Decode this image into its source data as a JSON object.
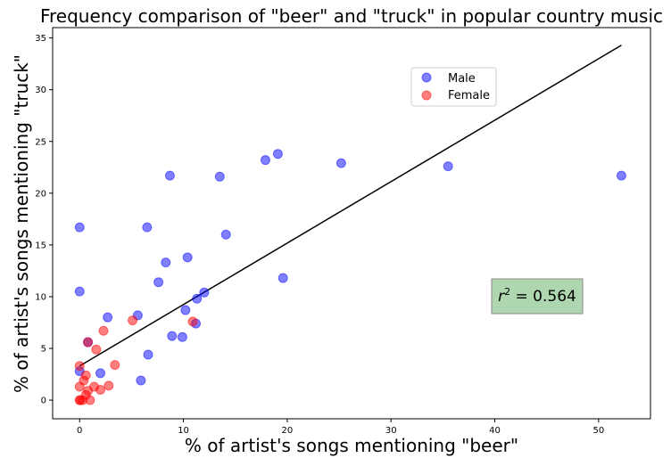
{
  "chart_data": {
    "type": "scatter",
    "title": "Frequency comparison of \"beer\" and \"truck\" in popular country music",
    "xlabel": "% of artist's songs mentioning \"beer\"",
    "ylabel": "% of artist's songs mentioning \"truck\"",
    "xlim": [
      -2.6,
      55.0
    ],
    "ylim": [
      -1.8,
      36.0
    ],
    "x_ticks": [
      0,
      10,
      20,
      30,
      40,
      50
    ],
    "y_ticks": [
      0,
      5,
      10,
      15,
      20,
      25,
      30,
      35
    ],
    "grid": false,
    "legend_position": "upper-right",
    "series": [
      {
        "name": "Male",
        "color": "#0000ff",
        "points": [
          [
            0,
            16.7
          ],
          [
            0,
            10.5
          ],
          [
            0,
            2.8
          ],
          [
            0.8,
            5.6
          ],
          [
            2.0,
            2.6
          ],
          [
            2.7,
            8.0
          ],
          [
            5.6,
            8.2
          ],
          [
            5.9,
            1.9
          ],
          [
            6.5,
            16.7
          ],
          [
            6.6,
            4.4
          ],
          [
            7.6,
            11.4
          ],
          [
            8.3,
            13.3
          ],
          [
            8.7,
            21.7
          ],
          [
            8.9,
            6.2
          ],
          [
            9.9,
            6.1
          ],
          [
            10.2,
            8.7
          ],
          [
            10.4,
            13.8
          ],
          [
            11.2,
            7.4
          ],
          [
            11.3,
            9.8
          ],
          [
            12.0,
            10.4
          ],
          [
            13.5,
            21.6
          ],
          [
            14.1,
            16.0
          ],
          [
            17.9,
            23.2
          ],
          [
            19.1,
            23.8
          ],
          [
            19.6,
            11.8
          ],
          [
            25.2,
            22.9
          ],
          [
            35.5,
            22.6
          ],
          [
            52.2,
            21.7
          ]
        ]
      },
      {
        "name": "Female",
        "color": "#ff0000",
        "points": [
          [
            0,
            3.3
          ],
          [
            0,
            1.3
          ],
          [
            0,
            0
          ],
          [
            0.05,
            0
          ],
          [
            0.3,
            0
          ],
          [
            0.4,
            1.9
          ],
          [
            0.6,
            0.5
          ],
          [
            0.6,
            2.4
          ],
          [
            0.8,
            5.6
          ],
          [
            0.8,
            0.9
          ],
          [
            1.0,
            0
          ],
          [
            1.4,
            1.3
          ],
          [
            1.6,
            4.9
          ],
          [
            2.0,
            1.0
          ],
          [
            2.3,
            6.7
          ],
          [
            2.8,
            1.4
          ],
          [
            3.4,
            3.4
          ],
          [
            5.1,
            7.7
          ],
          [
            10.9,
            7.6
          ]
        ]
      }
    ],
    "trend_line": {
      "x": [
        0,
        52.2
      ],
      "y": [
        3.3,
        34.3
      ],
      "color": "#000000"
    },
    "annotation": {
      "prefix": "r",
      "exponent": "2",
      "suffix": " = 0.564"
    }
  }
}
